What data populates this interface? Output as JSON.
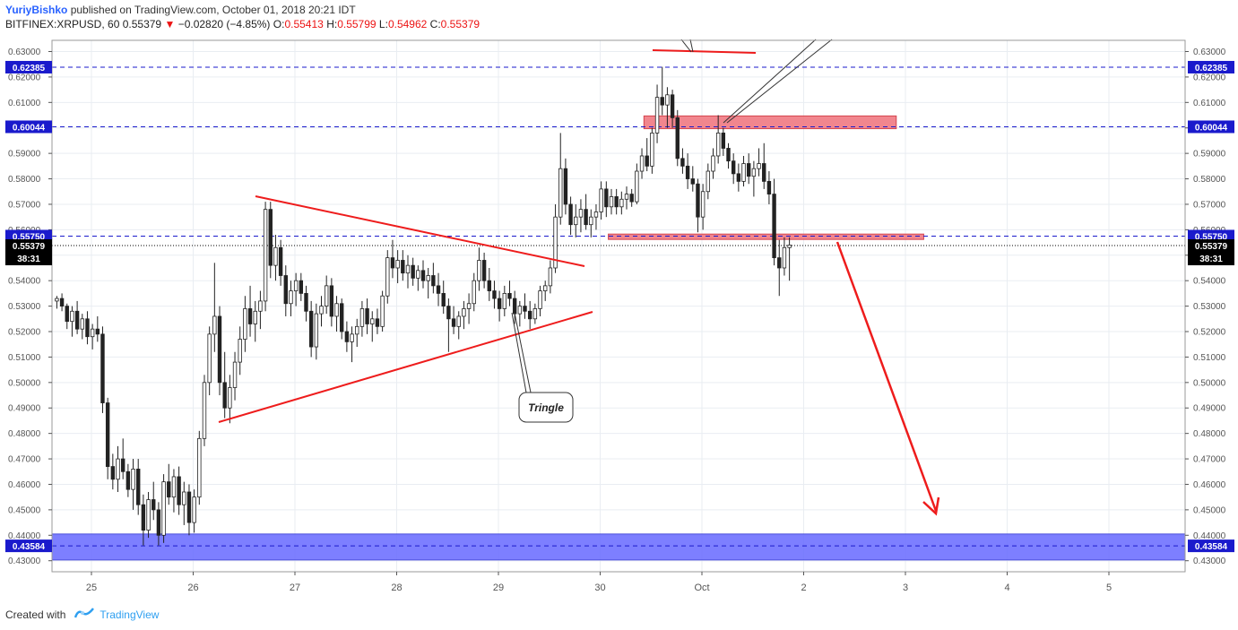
{
  "header": {
    "author": "YuriyBishko",
    "published_text": " published on TradingView.com, October 01, 2018 20:21 IDT",
    "symbol": "BITFINEX:XRPUSD, 60",
    "last": "0.55379",
    "change": "−0.02820 (−4.85%)",
    "open_label": "O:",
    "open": "0.55413",
    "high_label": "H:",
    "high": "0.55799",
    "low_label": "L:",
    "low": "0.54962",
    "close_label": "C:",
    "close": "0.55379"
  },
  "footer": {
    "created_with": "Created with",
    "brand": "TradingView"
  },
  "colors": {
    "grid": "#e9edf2",
    "axis": "#555555",
    "candle": "#222222",
    "trendline": "#ee1c1c",
    "level_line": "#1a1acc",
    "level_badge": "#1a1acc",
    "price_badge": "#000000",
    "red_zone_fill": "#f07a82",
    "blue_zone_fill": "#6f72ff"
  },
  "chart_data": {
    "type": "candlestick",
    "y_range": [
      0.425,
      0.632
    ],
    "y_ticks": [
      "0.63000",
      "0.62000",
      "0.61000",
      "0.60000",
      "0.59000",
      "0.58000",
      "0.57000",
      "0.56000",
      "0.55000",
      "0.54000",
      "0.53000",
      "0.52000",
      "0.51000",
      "0.50000",
      "0.49000",
      "0.48000",
      "0.47000",
      "0.46000",
      "0.45000",
      "0.44000",
      "0.43000"
    ],
    "x_labels": [
      "25",
      "26",
      "27",
      "28",
      "29",
      "30",
      "Oct",
      "2",
      "3",
      "4",
      "5"
    ],
    "levels": [
      {
        "label": "0.62385",
        "price": 0.62385
      },
      {
        "label": "0.60044",
        "price": 0.60044
      },
      {
        "label": "0.55750",
        "price": 0.5575
      },
      {
        "label": "0.43584",
        "price": 0.43584
      }
    ],
    "last_price": {
      "label": "0.55379",
      "price": 0.55379,
      "countdown": "38:31"
    },
    "zones": [
      {
        "kind": "resistance",
        "top": 0.6047,
        "bottom": 0.5997,
        "start": 5.43,
        "end": 7.91
      },
      {
        "kind": "support",
        "top": 0.5583,
        "bottom": 0.5562,
        "start": 5.08,
        "end": 8.18
      },
      {
        "kind": "target",
        "top": 0.4405,
        "bottom": 0.4303,
        "start": -0.4,
        "end": 11.71
      }
    ],
    "annotation": {
      "label": "Tringle"
    },
    "candles": [
      [
        -0.34,
        0.532,
        0.534,
        0.529,
        0.533
      ],
      [
        -0.29,
        0.533,
        0.535,
        0.528,
        0.53
      ],
      [
        -0.24,
        0.53,
        0.531,
        0.521,
        0.524
      ],
      [
        -0.19,
        0.524,
        0.53,
        0.518,
        0.528
      ],
      [
        -0.14,
        0.528,
        0.532,
        0.519,
        0.521
      ],
      [
        -0.09,
        0.521,
        0.527,
        0.517,
        0.525
      ],
      [
        -0.04,
        0.525,
        0.528,
        0.515,
        0.518
      ],
      [
        0.01,
        0.518,
        0.523,
        0.513,
        0.521
      ],
      [
        0.06,
        0.521,
        0.526,
        0.516,
        0.519
      ],
      [
        0.11,
        0.519,
        0.522,
        0.488,
        0.492
      ],
      [
        0.16,
        0.492,
        0.494,
        0.462,
        0.467
      ],
      [
        0.21,
        0.467,
        0.472,
        0.458,
        0.462
      ],
      [
        0.26,
        0.462,
        0.475,
        0.457,
        0.47
      ],
      [
        0.31,
        0.47,
        0.478,
        0.462,
        0.465
      ],
      [
        0.36,
        0.465,
        0.468,
        0.455,
        0.458
      ],
      [
        0.41,
        0.458,
        0.47,
        0.45,
        0.466
      ],
      [
        0.46,
        0.466,
        0.47,
        0.448,
        0.452
      ],
      [
        0.51,
        0.452,
        0.456,
        0.436,
        0.442
      ],
      [
        0.56,
        0.442,
        0.457,
        0.439,
        0.454
      ],
      [
        0.61,
        0.454,
        0.461,
        0.446,
        0.45
      ],
      [
        0.66,
        0.45,
        0.453,
        0.436,
        0.44
      ],
      [
        0.71,
        0.44,
        0.464,
        0.437,
        0.461
      ],
      [
        0.76,
        0.461,
        0.468,
        0.452,
        0.455
      ],
      [
        0.81,
        0.455,
        0.466,
        0.449,
        0.463
      ],
      [
        0.86,
        0.463,
        0.467,
        0.448,
        0.452
      ],
      [
        0.91,
        0.452,
        0.461,
        0.444,
        0.457
      ],
      [
        0.96,
        0.457,
        0.46,
        0.44,
        0.445
      ],
      [
        1.01,
        0.445,
        0.458,
        0.441,
        0.455
      ],
      [
        1.06,
        0.455,
        0.481,
        0.452,
        0.478
      ],
      [
        1.11,
        0.478,
        0.503,
        0.475,
        0.5
      ],
      [
        1.16,
        0.5,
        0.522,
        0.495,
        0.519
      ],
      [
        1.21,
        0.519,
        0.547,
        0.512,
        0.526
      ],
      [
        1.26,
        0.526,
        0.53,
        0.495,
        0.5
      ],
      [
        1.31,
        0.5,
        0.512,
        0.486,
        0.49
      ],
      [
        1.36,
        0.49,
        0.503,
        0.484,
        0.498
      ],
      [
        1.41,
        0.498,
        0.512,
        0.493,
        0.508
      ],
      [
        1.46,
        0.508,
        0.522,
        0.503,
        0.517
      ],
      [
        1.51,
        0.517,
        0.534,
        0.512,
        0.529
      ],
      [
        1.56,
        0.529,
        0.538,
        0.518,
        0.523
      ],
      [
        1.61,
        0.523,
        0.532,
        0.516,
        0.528
      ],
      [
        1.66,
        0.528,
        0.536,
        0.521,
        0.532
      ],
      [
        1.71,
        0.532,
        0.571,
        0.528,
        0.568
      ],
      [
        1.76,
        0.568,
        0.571,
        0.541,
        0.546
      ],
      [
        1.81,
        0.546,
        0.558,
        0.54,
        0.553
      ],
      [
        1.86,
        0.553,
        0.556,
        0.538,
        0.542
      ],
      [
        1.91,
        0.542,
        0.546,
        0.526,
        0.531
      ],
      [
        1.96,
        0.531,
        0.54,
        0.526,
        0.536
      ],
      [
        2.01,
        0.536,
        0.543,
        0.53,
        0.54
      ],
      [
        2.06,
        0.54,
        0.543,
        0.532,
        0.535
      ],
      [
        2.11,
        0.535,
        0.538,
        0.524,
        0.528
      ],
      [
        2.16,
        0.528,
        0.532,
        0.51,
        0.514
      ],
      [
        2.21,
        0.514,
        0.531,
        0.509,
        0.527
      ],
      [
        2.26,
        0.527,
        0.534,
        0.522,
        0.53
      ],
      [
        2.31,
        0.53,
        0.542,
        0.527,
        0.538
      ],
      [
        2.36,
        0.538,
        0.541,
        0.522,
        0.526
      ],
      [
        2.41,
        0.526,
        0.534,
        0.52,
        0.531
      ],
      [
        2.46,
        0.531,
        0.533,
        0.517,
        0.52
      ],
      [
        2.51,
        0.52,
        0.524,
        0.512,
        0.516
      ],
      [
        2.56,
        0.516,
        0.522,
        0.508,
        0.519
      ],
      [
        2.61,
        0.519,
        0.525,
        0.514,
        0.522
      ],
      [
        2.66,
        0.522,
        0.532,
        0.518,
        0.529
      ],
      [
        2.71,
        0.529,
        0.533,
        0.519,
        0.523
      ],
      [
        2.76,
        0.523,
        0.528,
        0.516,
        0.525
      ],
      [
        2.81,
        0.525,
        0.529,
        0.519,
        0.522
      ],
      [
        2.86,
        0.522,
        0.536,
        0.52,
        0.534
      ],
      [
        2.91,
        0.534,
        0.552,
        0.531,
        0.549
      ],
      [
        2.96,
        0.549,
        0.556,
        0.541,
        0.545
      ],
      [
        3.01,
        0.545,
        0.552,
        0.539,
        0.548
      ],
      [
        3.06,
        0.548,
        0.552,
        0.54,
        0.543
      ],
      [
        3.11,
        0.543,
        0.55,
        0.537,
        0.546
      ],
      [
        3.16,
        0.546,
        0.549,
        0.538,
        0.541
      ],
      [
        3.21,
        0.541,
        0.546,
        0.536,
        0.544
      ],
      [
        3.26,
        0.544,
        0.548,
        0.537,
        0.54
      ],
      [
        3.31,
        0.54,
        0.545,
        0.533,
        0.542
      ],
      [
        3.36,
        0.542,
        0.547,
        0.535,
        0.538
      ],
      [
        3.41,
        0.538,
        0.543,
        0.53,
        0.535
      ],
      [
        3.46,
        0.535,
        0.54,
        0.527,
        0.53
      ],
      [
        3.51,
        0.53,
        0.533,
        0.512,
        0.525
      ],
      [
        3.56,
        0.525,
        0.53,
        0.519,
        0.522
      ],
      [
        3.61,
        0.522,
        0.528,
        0.517,
        0.526
      ],
      [
        3.66,
        0.526,
        0.532,
        0.521,
        0.529
      ],
      [
        3.71,
        0.529,
        0.535,
        0.523,
        0.531
      ],
      [
        3.76,
        0.531,
        0.543,
        0.528,
        0.54
      ],
      [
        3.81,
        0.54,
        0.553,
        0.536,
        0.548
      ],
      [
        3.86,
        0.548,
        0.551,
        0.537,
        0.54
      ],
      [
        3.91,
        0.54,
        0.545,
        0.532,
        0.536
      ],
      [
        3.96,
        0.536,
        0.54,
        0.529,
        0.533
      ],
      [
        4.01,
        0.533,
        0.536,
        0.524,
        0.529
      ],
      [
        4.06,
        0.529,
        0.538,
        0.526,
        0.535
      ],
      [
        4.11,
        0.535,
        0.54,
        0.53,
        0.533
      ],
      [
        4.16,
        0.533,
        0.536,
        0.523,
        0.527
      ],
      [
        4.21,
        0.527,
        0.532,
        0.522,
        0.53
      ],
      [
        4.26,
        0.53,
        0.535,
        0.525,
        0.528
      ],
      [
        4.31,
        0.528,
        0.532,
        0.521,
        0.525
      ],
      [
        4.36,
        0.525,
        0.531,
        0.523,
        0.529
      ],
      [
        4.41,
        0.529,
        0.538,
        0.526,
        0.536
      ],
      [
        4.46,
        0.536,
        0.54,
        0.532,
        0.538
      ],
      [
        4.51,
        0.538,
        0.548,
        0.535,
        0.545
      ],
      [
        4.56,
        0.545,
        0.57,
        0.543,
        0.565
      ],
      [
        4.61,
        0.565,
        0.598,
        0.562,
        0.584
      ],
      [
        4.66,
        0.584,
        0.588,
        0.566,
        0.57
      ],
      [
        4.71,
        0.57,
        0.573,
        0.558,
        0.562
      ],
      [
        4.76,
        0.562,
        0.57,
        0.557,
        0.565
      ],
      [
        4.81,
        0.565,
        0.572,
        0.559,
        0.568
      ],
      [
        4.86,
        0.568,
        0.574,
        0.56,
        0.562
      ],
      [
        4.91,
        0.562,
        0.568,
        0.557,
        0.565
      ],
      [
        4.96,
        0.565,
        0.57,
        0.56,
        0.567
      ],
      [
        5.01,
        0.567,
        0.579,
        0.564,
        0.576
      ],
      [
        5.06,
        0.576,
        0.579,
        0.565,
        0.569
      ],
      [
        5.11,
        0.569,
        0.576,
        0.566,
        0.573
      ],
      [
        5.16,
        0.573,
        0.576,
        0.566,
        0.569
      ],
      [
        5.21,
        0.569,
        0.575,
        0.566,
        0.572
      ],
      [
        5.26,
        0.572,
        0.577,
        0.568,
        0.574
      ],
      [
        5.31,
        0.574,
        0.576,
        0.569,
        0.571
      ],
      [
        5.36,
        0.571,
        0.586,
        0.57,
        0.583
      ],
      [
        5.41,
        0.583,
        0.592,
        0.58,
        0.589
      ],
      [
        5.46,
        0.589,
        0.596,
        0.583,
        0.585
      ],
      [
        5.51,
        0.585,
        0.6,
        0.582,
        0.598
      ],
      [
        5.56,
        0.598,
        0.617,
        0.594,
        0.612
      ],
      [
        5.61,
        0.612,
        0.624,
        0.605,
        0.609
      ],
      [
        5.66,
        0.609,
        0.616,
        0.6,
        0.613
      ],
      [
        5.71,
        0.613,
        0.615,
        0.6,
        0.604
      ],
      [
        5.76,
        0.604,
        0.607,
        0.585,
        0.588
      ],
      [
        5.81,
        0.588,
        0.592,
        0.582,
        0.585
      ],
      [
        5.86,
        0.585,
        0.59,
        0.576,
        0.58
      ],
      [
        5.91,
        0.58,
        0.585,
        0.575,
        0.578
      ],
      [
        5.96,
        0.578,
        0.58,
        0.559,
        0.565
      ],
      [
        6.01,
        0.565,
        0.578,
        0.56,
        0.575
      ],
      [
        6.06,
        0.575,
        0.586,
        0.572,
        0.583
      ],
      [
        6.11,
        0.583,
        0.592,
        0.58,
        0.589
      ],
      [
        6.16,
        0.589,
        0.605,
        0.586,
        0.598
      ],
      [
        6.21,
        0.598,
        0.6,
        0.589,
        0.592
      ],
      [
        6.26,
        0.592,
        0.594,
        0.584,
        0.587
      ],
      [
        6.31,
        0.587,
        0.59,
        0.578,
        0.582
      ],
      [
        6.36,
        0.582,
        0.586,
        0.575,
        0.579
      ],
      [
        6.41,
        0.579,
        0.589,
        0.577,
        0.586
      ],
      [
        6.46,
        0.586,
        0.59,
        0.578,
        0.581
      ],
      [
        6.51,
        0.581,
        0.587,
        0.573,
        0.584
      ],
      [
        6.56,
        0.584,
        0.592,
        0.581,
        0.586
      ],
      [
        6.61,
        0.586,
        0.594,
        0.576,
        0.579
      ],
      [
        6.66,
        0.579,
        0.583,
        0.57,
        0.574
      ],
      [
        6.71,
        0.574,
        0.58,
        0.546,
        0.549
      ],
      [
        6.76,
        0.549,
        0.556,
        0.534,
        0.545
      ],
      [
        6.81,
        0.545,
        0.557,
        0.542,
        0.553
      ],
      [
        6.86,
        0.553,
        0.557,
        0.54,
        0.554
      ]
    ]
  }
}
